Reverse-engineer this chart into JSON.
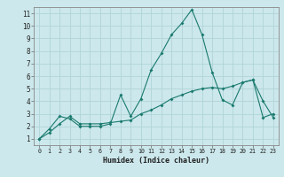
{
  "xlabel": "Humidex (Indice chaleur)",
  "bg_color": "#cce8ec",
  "grid_color": "#b0d4d8",
  "line_color": "#1a7a6e",
  "xlim": [
    -0.5,
    23.5
  ],
  "ylim": [
    0.5,
    11.5
  ],
  "xticks": [
    0,
    1,
    2,
    3,
    4,
    5,
    6,
    7,
    8,
    9,
    10,
    11,
    12,
    13,
    14,
    15,
    16,
    17,
    18,
    19,
    20,
    21,
    22,
    23
  ],
  "yticks": [
    1,
    2,
    3,
    4,
    5,
    6,
    7,
    8,
    9,
    10,
    11
  ],
  "line1_x": [
    0,
    1,
    2,
    3,
    4,
    5,
    6,
    7,
    8,
    9,
    10,
    11,
    12,
    13,
    14,
    15,
    16,
    17,
    18,
    19,
    20,
    21,
    22,
    23
  ],
  "line1_y": [
    1.0,
    1.8,
    2.8,
    2.6,
    2.0,
    2.0,
    2.0,
    2.2,
    4.5,
    2.8,
    4.2,
    6.5,
    7.8,
    9.3,
    10.2,
    11.3,
    9.3,
    6.3,
    4.1,
    3.7,
    5.5,
    5.7,
    4.0,
    2.7
  ],
  "line2_x": [
    0,
    1,
    2,
    3,
    4,
    5,
    6,
    7,
    8,
    9,
    10,
    11,
    12,
    13,
    14,
    15,
    16,
    17,
    18,
    19,
    20,
    21,
    22,
    23
  ],
  "line2_y": [
    1.0,
    1.5,
    2.2,
    2.8,
    2.2,
    2.2,
    2.2,
    2.3,
    2.4,
    2.5,
    3.0,
    3.3,
    3.7,
    4.2,
    4.5,
    4.8,
    5.0,
    5.1,
    5.0,
    5.2,
    5.5,
    5.7,
    2.7,
    3.0
  ]
}
